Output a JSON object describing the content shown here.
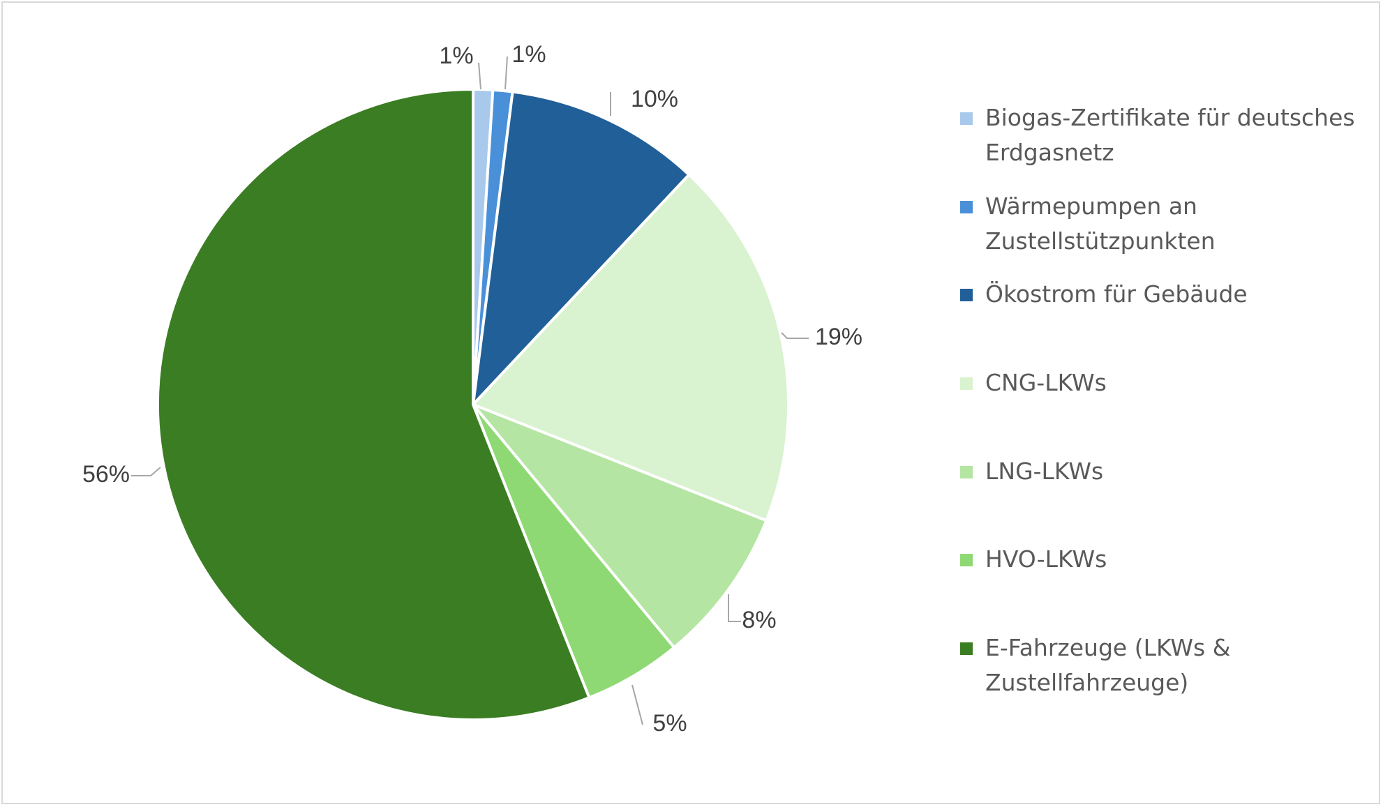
{
  "chart_data": {
    "type": "pie",
    "title": "",
    "slices": [
      {
        "label": "Biogas-Zertifikate für deutsches Erdgasnetz",
        "value": 1,
        "display": "1%",
        "color": "#a9c9ec"
      },
      {
        "label": "Wärmepumpen an Zustellstützpunkten",
        "value": 1,
        "display": "1%",
        "color": "#4a90d9"
      },
      {
        "label": "Ökostrom für Gebäude",
        "value": 10,
        "display": "10%",
        "color": "#215f99"
      },
      {
        "label": "CNG-LKWs",
        "value": 19,
        "display": "19%",
        "color": "#d9f2d0"
      },
      {
        "label": "LNG-LKWs",
        "value": 8,
        "display": "8%",
        "color": "#b4e5a2"
      },
      {
        "label": "HVO-LKWs",
        "value": 5,
        "display": "5%",
        "color": "#8ed973"
      },
      {
        "label": "E-Fahrzeuge (LKWs & Zustellfahrzeuge)",
        "value": 56,
        "display": "56%",
        "color": "#3b7d23"
      }
    ],
    "legend_position": "right",
    "start_angle": "top, clockwise"
  },
  "legend": {
    "items": [
      {
        "line1": "Biogas-Zertifikate für deutsches",
        "line2": "Erdgasnetz",
        "color": "#a9c9ec"
      },
      {
        "line1": "Wärmepumpen an",
        "line2": "Zustellstützpunkten",
        "color": "#4a90d9"
      },
      {
        "line1": "Ökostrom für Gebäude",
        "line2": "",
        "color": "#215f99"
      },
      {
        "line1": "CNG-LKWs",
        "line2": "",
        "color": "#d9f2d0"
      },
      {
        "line1": "LNG-LKWs",
        "line2": "",
        "color": "#b4e5a2"
      },
      {
        "line1": "HVO-LKWs",
        "line2": "",
        "color": "#8ed973"
      },
      {
        "line1": "E-Fahrzeuge (LKWs &",
        "line2": "Zustellfahrzeuge)",
        "color": "#3b7d23"
      }
    ]
  }
}
